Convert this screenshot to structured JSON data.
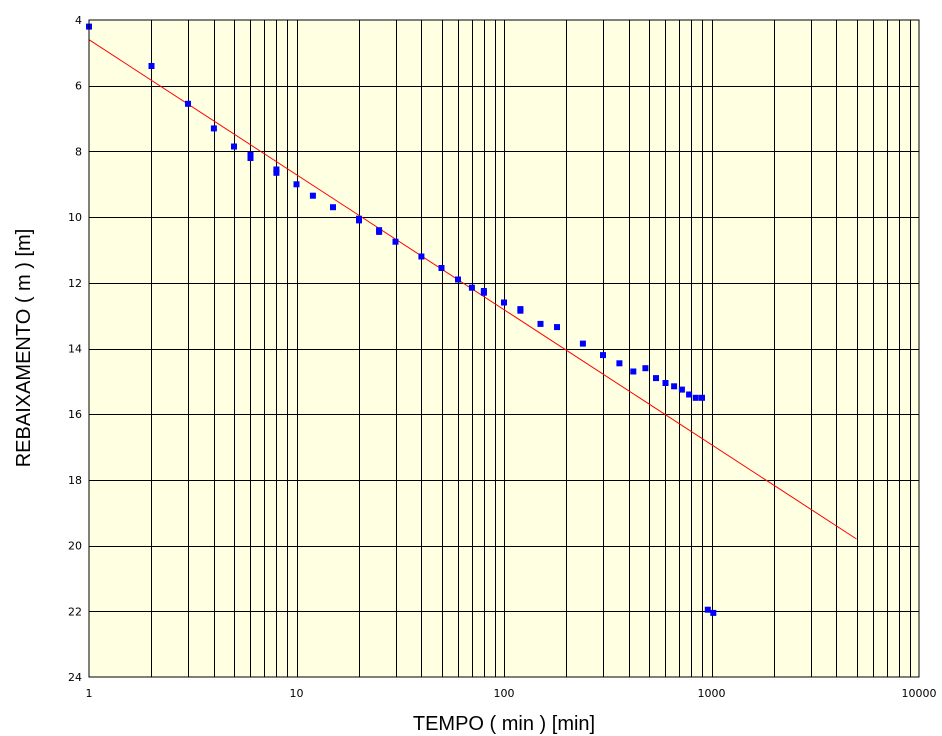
{
  "chart_data": {
    "type": "scatter",
    "xlabel": "TEMPO ( min ) [min]",
    "ylabel": "REBAIXAMENTO ( m ) [m]",
    "x_scale": "log",
    "xlim": [
      1,
      10000
    ],
    "ylim": [
      4,
      24
    ],
    "y_inverted": true,
    "grid": true,
    "x_tick_labels": [
      "1",
      "10",
      "100",
      "1000",
      "10000"
    ],
    "y_tick_labels": [
      "4",
      "6",
      "8",
      "10",
      "12",
      "14",
      "16",
      "18",
      "20",
      "22",
      "24"
    ],
    "colors": {
      "plot_background": "#ffffe1",
      "grid": "#000000",
      "points": "#0000ff",
      "fit_line": "#ff0000"
    },
    "series": [
      {
        "kind": "points",
        "x": [
          1,
          2,
          3,
          4,
          5,
          6,
          6,
          8,
          8,
          10,
          12,
          15,
          20,
          20,
          25,
          25,
          30,
          40,
          50,
          60,
          70,
          80,
          80,
          100,
          120,
          120,
          150,
          180,
          240,
          300,
          360,
          420,
          480,
          540,
          600,
          660,
          720,
          780,
          840,
          900,
          960,
          1020
        ],
        "y": [
          4.2,
          5.4,
          6.55,
          7.3,
          7.85,
          8.1,
          8.2,
          8.55,
          8.65,
          9.0,
          9.35,
          9.7,
          10.05,
          10.1,
          10.4,
          10.45,
          10.75,
          11.2,
          11.55,
          11.9,
          12.15,
          12.25,
          12.3,
          12.6,
          12.8,
          12.85,
          13.25,
          13.35,
          13.85,
          14.2,
          14.45,
          14.7,
          14.6,
          14.9,
          15.05,
          15.15,
          15.25,
          15.4,
          15.5,
          15.5,
          21.95,
          22.05
        ]
      },
      {
        "kind": "line",
        "x": [
          1,
          5000
        ],
        "y": [
          4.6,
          19.8
        ]
      }
    ]
  }
}
